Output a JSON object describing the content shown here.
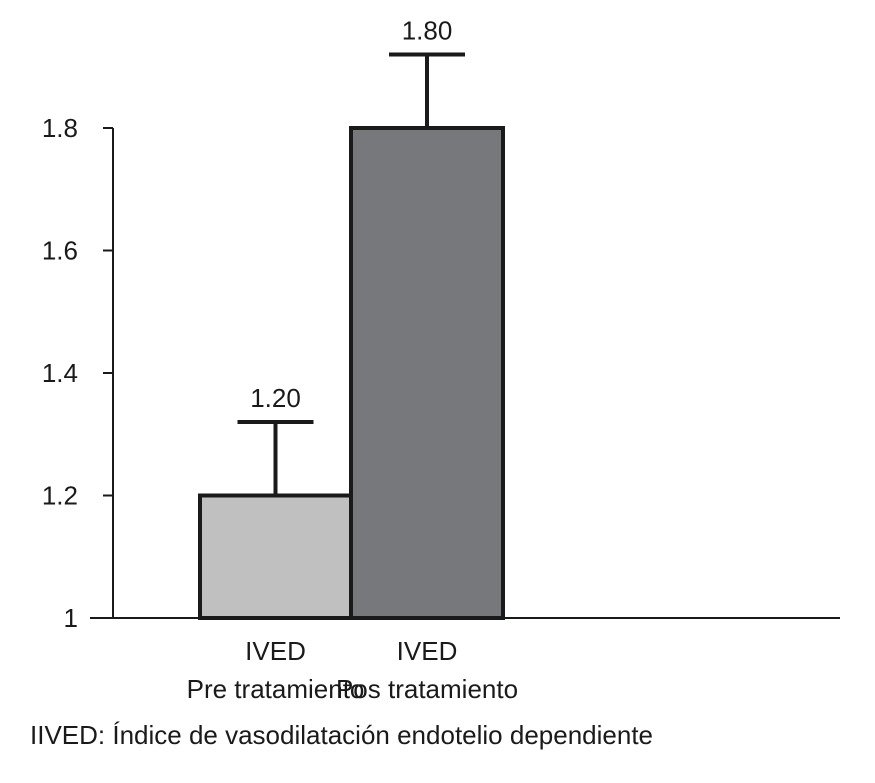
{
  "chart_data": {
    "type": "bar",
    "categories": [
      [
        "IVED",
        "Pre tratamiento"
      ],
      [
        "IVED",
        "Pos tratamiento"
      ]
    ],
    "values": [
      1.2,
      1.8
    ],
    "value_labels": [
      "1.20",
      "1.80"
    ],
    "error_upper": [
      1.32,
      1.92
    ],
    "bar_colors": [
      "#c0c0c0",
      "#77787b"
    ],
    "ylim": [
      1,
      1.8
    ],
    "yticks": [
      1,
      1.2,
      1.4,
      1.6,
      1.8
    ],
    "ytick_labels": [
      "1",
      "1.2",
      "1.4",
      "1.6",
      "1.8"
    ],
    "grid": false,
    "footnote": "IIVED: Índice de vasodilatación endotelio dependiente"
  }
}
